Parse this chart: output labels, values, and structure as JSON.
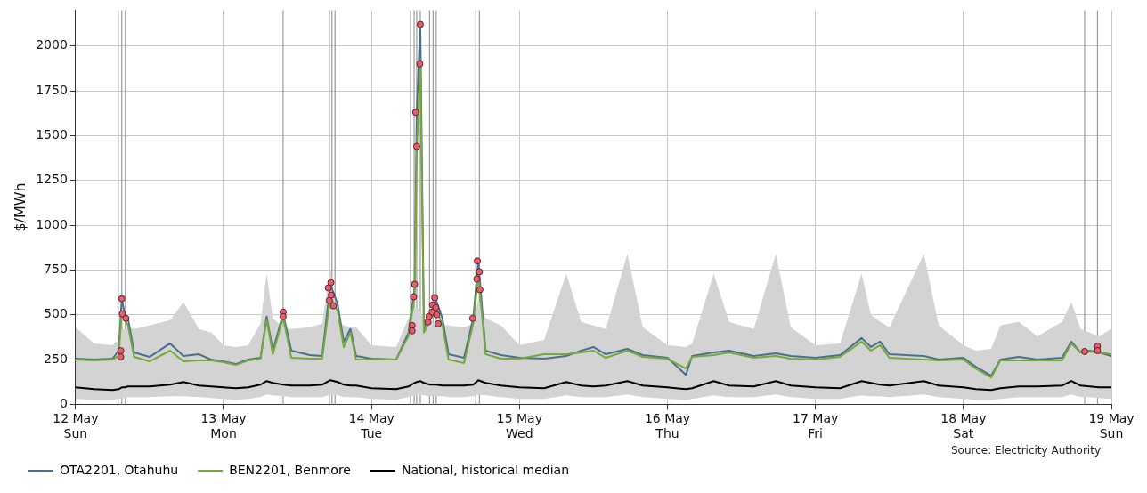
{
  "chart_data": {
    "type": "line",
    "ylabel": "$/MWh",
    "annotations": [
      "Source: Electricity Authority"
    ],
    "x": [
      "--05-12T00:00",
      "--05-12T03:00",
      "--05-12T06:00",
      "--05-12T07:00",
      "--05-12T07:30",
      "--05-12T08:00",
      "--05-12T08:30",
      "--05-12T09:30",
      "--05-12T12:00",
      "--05-12T15:20",
      "--05-12T17:30",
      "--05-12T20:00",
      "--05-12T22:00",
      "--05-13T00:00",
      "--05-13T02:00",
      "--05-13T04:00",
      "--05-13T06:00",
      "--05-13T07:00",
      "--05-13T08:00",
      "--05-13T09:40",
      "--05-13T11:00",
      "--05-13T14:00",
      "--05-13T16:00",
      "--05-13T17:20",
      "--05-13T18:30",
      "--05-13T19:30",
      "--05-13T20:35",
      "--05-13T21:30",
      "--05-14T00:00",
      "--05-14T04:00",
      "--05-14T06:00",
      "--05-14T07:00",
      "--05-14T07:20",
      "--05-14T07:55",
      "--05-14T08:30",
      "--05-14T09:30",
      "--05-14T10:30",
      "--05-14T11:30",
      "--05-14T12:30",
      "--05-14T15:00",
      "--05-14T16:30",
      "--05-14T17:20",
      "--05-14T18:30",
      "--05-14T21:00",
      "--05-15T00:00",
      "--05-15T04:00",
      "--05-15T07:35",
      "--05-15T10:00",
      "--05-15T12:00",
      "--05-15T14:00",
      "--05-15T17:30",
      "--05-15T20:00",
      "--05-16T00:00",
      "--05-16T03:00",
      "--05-16T04:00",
      "--05-16T07:30",
      "--05-16T10:00",
      "--05-16T14:00",
      "--05-16T17:35",
      "--05-16T20:00",
      "--05-17T00:00",
      "--05-17T04:00",
      "--05-17T07:30",
      "--05-17T09:00",
      "--05-17T10:30",
      "--05-17T12:00",
      "--05-17T17:35",
      "--05-17T20:00",
      "--05-18T00:00",
      "--05-18T02:00",
      "--05-18T04:30",
      "--05-18T06:00",
      "--05-18T09:00",
      "--05-18T12:00",
      "--05-18T16:00",
      "--05-18T17:30",
      "--05-18T19:00",
      "--05-18T20:30",
      "--05-18T22:00",
      "--05-19T00:00"
    ],
    "series": [
      {
        "name": "OTA2201, Otahuhu",
        "color": "#4a6f8f",
        "values": [
          255,
          250,
          255,
          300,
          590,
          500,
          480,
          290,
          265,
          340,
          270,
          280,
          250,
          240,
          225,
          250,
          260,
          490,
          300,
          505,
          300,
          275,
          270,
          670,
          560,
          350,
          420,
          270,
          255,
          250,
          400,
          650,
          1630,
          2120,
          420,
          500,
          580,
          480,
          280,
          260,
          480,
          800,
          300,
          275,
          260,
          255,
          270,
          300,
          320,
          280,
          310,
          275,
          260,
          165,
          270,
          290,
          300,
          270,
          285,
          270,
          260,
          275,
          370,
          320,
          350,
          280,
          270,
          250,
          260,
          210,
          160,
          250,
          265,
          250,
          260,
          350,
          290,
          300,
          290,
          270
        ]
      },
      {
        "name": "BEN2201, Benmore",
        "color": "#77a83a",
        "values": [
          250,
          245,
          250,
          270,
          520,
          470,
          440,
          265,
          240,
          300,
          240,
          245,
          245,
          235,
          220,
          245,
          255,
          470,
          280,
          485,
          260,
          255,
          255,
          600,
          520,
          320,
          400,
          250,
          250,
          250,
          380,
          600,
          1400,
          1900,
          400,
          470,
          540,
          440,
          250,
          230,
          450,
          720,
          280,
          255,
          255,
          280,
          280,
          290,
          300,
          260,
          300,
          265,
          255,
          200,
          265,
          275,
          290,
          260,
          270,
          255,
          250,
          265,
          350,
          300,
          330,
          260,
          250,
          245,
          250,
          200,
          150,
          245,
          245,
          245,
          245,
          340,
          290,
          295,
          290,
          280
        ]
      },
      {
        "name": "National, historical median",
        "color": "#000000",
        "values": [
          95,
          85,
          80,
          85,
          95,
          95,
          100,
          100,
          100,
          110,
          125,
          105,
          100,
          95,
          90,
          95,
          110,
          130,
          120,
          110,
          105,
          105,
          110,
          135,
          125,
          110,
          105,
          105,
          90,
          85,
          100,
          120,
          125,
          130,
          120,
          110,
          110,
          105,
          105,
          105,
          110,
          135,
          120,
          105,
          95,
          90,
          125,
          105,
          100,
          105,
          130,
          105,
          95,
          85,
          90,
          130,
          105,
          100,
          130,
          105,
          95,
          90,
          130,
          120,
          110,
          105,
          130,
          105,
          95,
          85,
          80,
          90,
          100,
          100,
          105,
          130,
          105,
          100,
          95,
          95
        ],
        "lower": [
          30,
          25,
          25,
          30,
          35,
          35,
          40,
          40,
          40,
          45,
          45,
          40,
          35,
          30,
          25,
          30,
          40,
          55,
          50,
          45,
          40,
          40,
          40,
          55,
          50,
          40,
          40,
          40,
          30,
          25,
          40,
          50,
          55,
          55,
          50,
          45,
          45,
          45,
          40,
          40,
          45,
          55,
          50,
          40,
          30,
          30,
          50,
          40,
          40,
          40,
          55,
          40,
          30,
          25,
          30,
          50,
          40,
          40,
          55,
          40,
          30,
          30,
          50,
          45,
          45,
          40,
          55,
          40,
          30,
          25,
          25,
          30,
          40,
          40,
          40,
          55,
          40,
          40,
          35,
          30
        ],
        "upper": [
          430,
          340,
          330,
          360,
          420,
          420,
          430,
          420,
          440,
          470,
          570,
          420,
          400,
          330,
          320,
          330,
          450,
          730,
          480,
          430,
          420,
          430,
          450,
          760,
          470,
          440,
          430,
          430,
          330,
          320,
          480,
          540,
          540,
          520,
          480,
          460,
          460,
          450,
          440,
          430,
          450,
          590,
          480,
          440,
          330,
          360,
          730,
          460,
          440,
          420,
          840,
          430,
          330,
          320,
          340,
          730,
          460,
          420,
          840,
          430,
          330,
          340,
          730,
          500,
          460,
          430,
          840,
          440,
          330,
          300,
          310,
          440,
          460,
          380,
          460,
          570,
          420,
          400,
          380,
          420
        ]
      },
      {
        "type": "scatter",
        "color": "#e0606e",
        "marker": "circle",
        "x": [
          "--05-12T07:20",
          "--05-12T07:20",
          "--05-12T07:30",
          "--05-12T07:35",
          "--05-12T08:10",
          "--05-13T09:40",
          "--05-13T09:40",
          "--05-13T17:00",
          "--05-13T17:10",
          "--05-13T17:25",
          "--05-13T17:30",
          "--05-13T17:50",
          "--05-14T06:35",
          "--05-14T06:35",
          "--05-14T06:50",
          "--05-14T07:00",
          "--05-14T07:10",
          "--05-14T07:20",
          "--05-14T07:50",
          "--05-14T07:55",
          "--05-14T09:10",
          "--05-14T09:20",
          "--05-14T09:50",
          "--05-14T09:55",
          "--05-14T10:15",
          "--05-14T10:25",
          "--05-14T10:35",
          "--05-14T10:50",
          "--05-14T16:25",
          "--05-14T17:05",
          "--05-14T17:10",
          "--05-14T17:30",
          "--05-14T17:35",
          "--05-18T19:40",
          "--05-18T21:45",
          "--05-18T21:45"
        ],
        "values": [
          300,
          265,
          590,
          505,
          480,
          515,
          490,
          650,
          580,
          680,
          610,
          550,
          440,
          410,
          600,
          670,
          1630,
          1440,
          1900,
          2120,
          460,
          490,
          515,
          555,
          595,
          540,
          500,
          450,
          480,
          700,
          800,
          740,
          640,
          295,
          325,
          300
        ]
      }
    ],
    "ref_lines": [
      {
        "axis": "x",
        "value": "--05-12T06:55",
        "color": "#999999"
      },
      {
        "axis": "x",
        "value": "--05-12T07:30",
        "color": "#999999"
      },
      {
        "axis": "x",
        "value": "--05-12T08:05",
        "color": "#999999"
      },
      {
        "axis": "x",
        "value": "--05-13T09:40",
        "color": "#999999"
      },
      {
        "axis": "x",
        "value": "--05-13T17:10",
        "color": "#999999"
      },
      {
        "axis": "x",
        "value": "--05-13T17:35",
        "color": "#999999"
      },
      {
        "axis": "x",
        "value": "--05-13T18:05",
        "color": "#999999"
      },
      {
        "axis": "x",
        "value": "--05-14T06:20",
        "color": "#999999"
      },
      {
        "axis": "x",
        "value": "--05-14T06:55",
        "color": "#999999"
      },
      {
        "axis": "x",
        "value": "--05-14T07:20",
        "color": "#999999"
      },
      {
        "axis": "x",
        "value": "--05-14T07:55",
        "color": "#999999"
      },
      {
        "axis": "x",
        "value": "--05-14T09:25",
        "color": "#999999"
      },
      {
        "axis": "x",
        "value": "--05-14T10:00",
        "color": "#999999"
      },
      {
        "axis": "x",
        "value": "--05-14T10:30",
        "color": "#999999"
      },
      {
        "axis": "x",
        "value": "--05-14T16:55",
        "color": "#999999"
      },
      {
        "axis": "x",
        "value": "--05-14T17:30",
        "color": "#999999"
      },
      {
        "axis": "x",
        "value": "--05-18T19:40",
        "color": "#999999"
      },
      {
        "axis": "x",
        "value": "--05-18T21:45",
        "color": "#999999"
      }
    ],
    "xlim": [
      "--05-12T00:00",
      "--05-19T00:00"
    ],
    "xticks": [
      {
        "value": "--05-12",
        "label": "12 May\nSun"
      },
      {
        "value": "--05-13",
        "label": "13 May\nMon"
      },
      {
        "value": "--05-14",
        "label": "14 May\nTue"
      },
      {
        "value": "--05-15",
        "label": "15 May\nWed"
      },
      {
        "value": "--05-16",
        "label": "16 May\nThu"
      },
      {
        "value": "--05-17",
        "label": "17 May\nFri"
      },
      {
        "value": "--05-18",
        "label": "18 May\nSat"
      },
      {
        "value": "--05-19",
        "label": "19 May\nSun"
      }
    ],
    "ylim": [
      0,
      2200
    ],
    "yticks": [
      0,
      250,
      500,
      750,
      1000,
      1250,
      1500,
      1750,
      2000
    ],
    "grid": true,
    "legend": "bottom left",
    "marker": "none",
    "line_style": "solid"
  }
}
